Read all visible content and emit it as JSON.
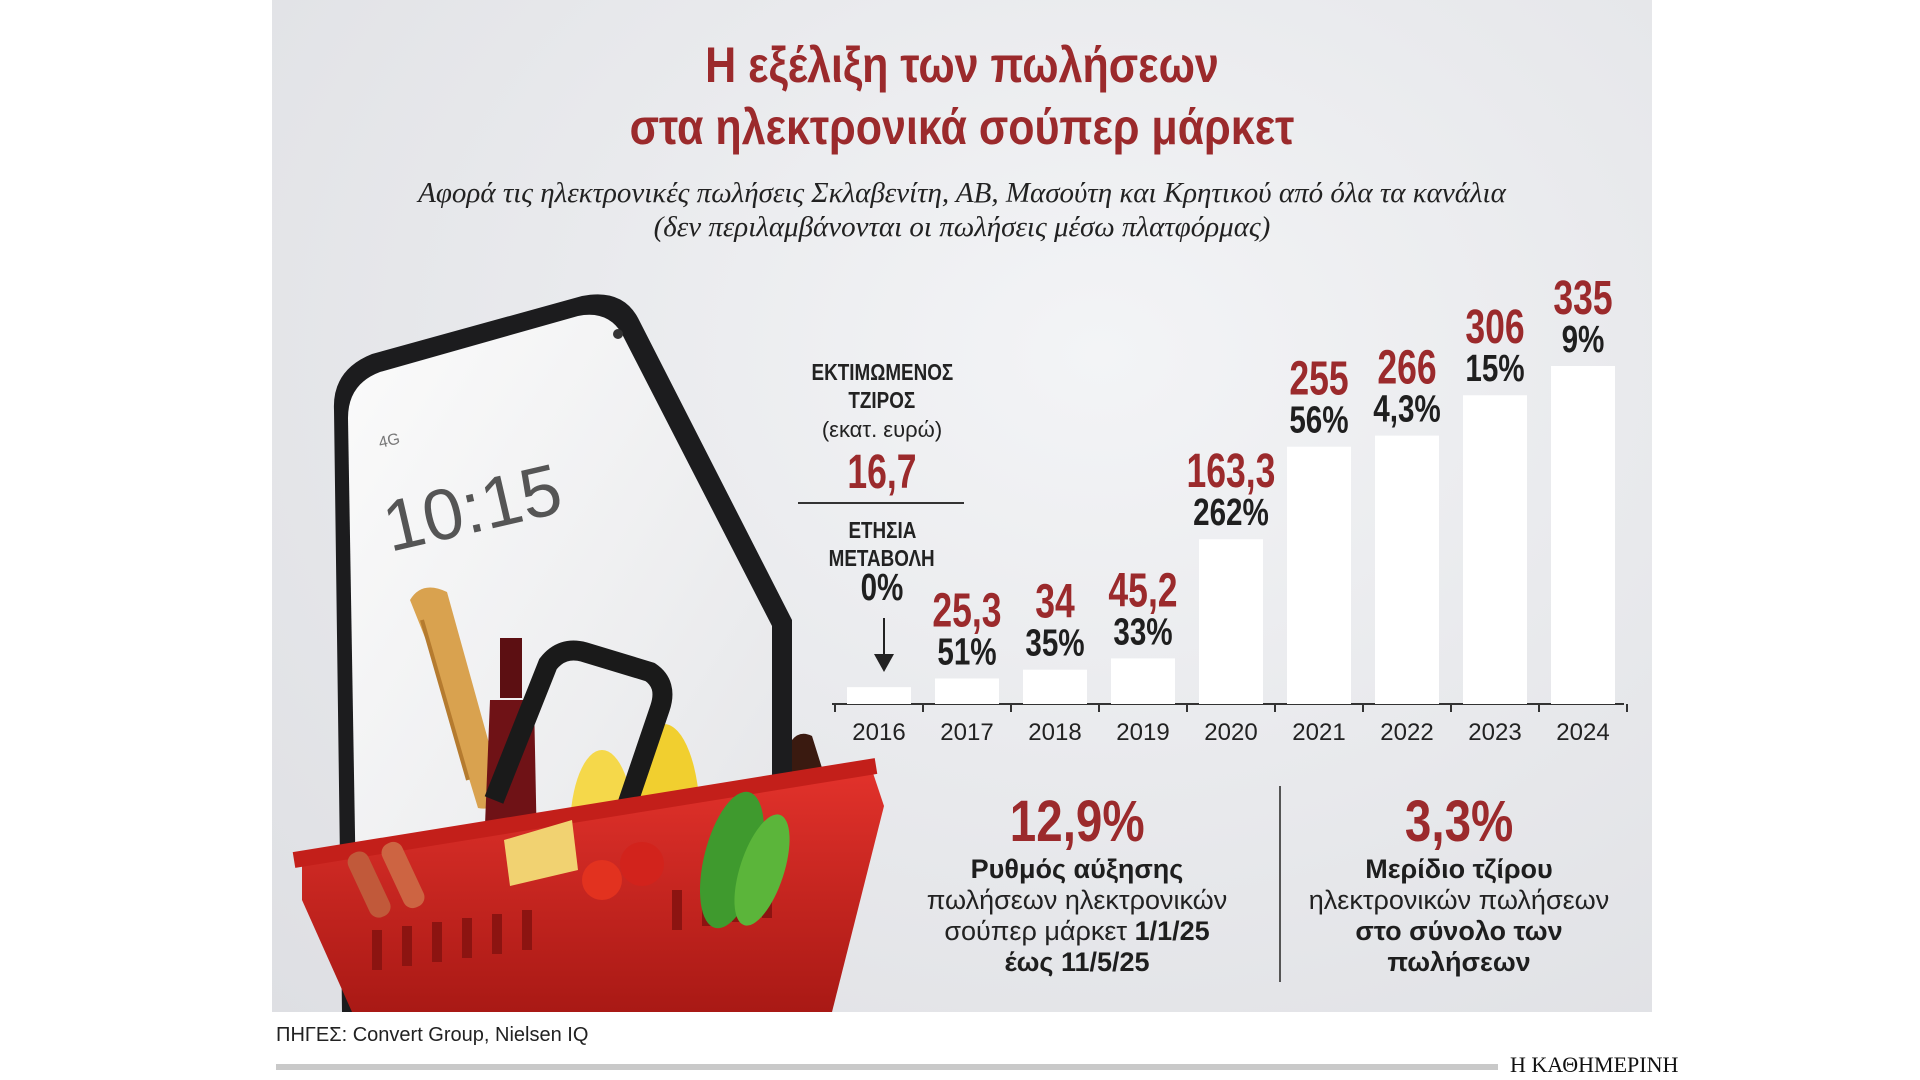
{
  "title_line1": "Η εξέλιξη των πωλήσεων",
  "title_line2": "στα ηλεκτρονικά σούπερ μάρκετ",
  "subtitle_line1": "Αφορά τις ηλεκτρονικές πωλήσεις Σκλαβενίτη, ΑΒ, Μασούτη και Κρητικού από όλα τα κανάλια",
  "subtitle_line2": "(δεν περιλαμβάνονται οι πωλήσεις μέσω πλατφόρμας)",
  "phone_time": "10:15",
  "phone_signal": "4G",
  "legend": {
    "turnover_label_1": "ΕΚΤΙΜΩΜΕΝΟΣ",
    "turnover_label_2": "ΤΖΙΡΟΣ",
    "unit": "(εκατ. ευρώ)",
    "change_label_1": "ΕΤΗΣΙΑ",
    "change_label_2": "ΜΕΤΑΒΟΛΗ"
  },
  "chart_data": {
    "type": "bar",
    "categories": [
      "2016",
      "2017",
      "2018",
      "2019",
      "2020",
      "2021",
      "2022",
      "2023",
      "2024"
    ],
    "values": [
      16.7,
      25.3,
      34,
      45.2,
      163.3,
      255,
      266,
      306,
      335
    ],
    "value_labels": [
      "16,7",
      "25,3",
      "34",
      "45,2",
      "163,3",
      "255",
      "266",
      "306",
      "335"
    ],
    "change_labels": [
      "0%",
      "51%",
      "35%",
      "33%",
      "262%",
      "56%",
      "4,3%",
      "15%",
      "9%"
    ],
    "ylim": [
      0,
      335
    ],
    "colors": {
      "bar": "#ffffff",
      "value": "#9b2a2c",
      "change": "#1f1f1f",
      "axis": "#333333"
    }
  },
  "stats": [
    {
      "value": "12,9%",
      "line1": "Ρυθμός αύξησης",
      "line2": "πωλήσεων ηλεκτρονικών",
      "line3a": "σούπερ μάρκετ ",
      "line3b": "1/1/25",
      "line4": "έως 11/5/25"
    },
    {
      "value": "3,3%",
      "line1": "Μερίδιο τζίρου",
      "line2": "ηλεκτρονικών πωλήσεων",
      "line3": "στο σύνολο των",
      "line4": "πωλήσεων"
    }
  ],
  "sources": "ΠΗΓΕΣ: Convert Group, Nielsen IQ",
  "brand": "Η ΚΑΘΗΜΕΡΙΝΗ"
}
